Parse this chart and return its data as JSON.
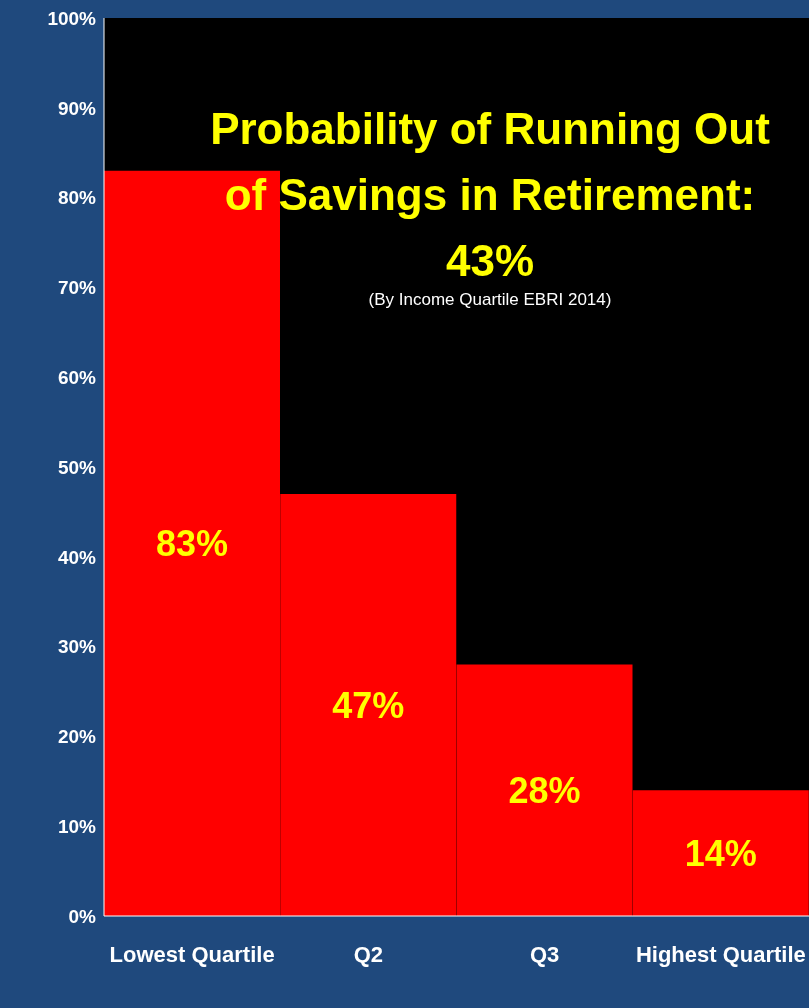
{
  "chart_data": {
    "type": "bar",
    "title": "Probability of Running Out of Savings in Retirement: 43%",
    "subtitle": "(By Income Quartile EBRI 2014)",
    "categories": [
      "Lowest Quartile",
      "Q2",
      "Q3",
      "Highest Quartile"
    ],
    "values": [
      83,
      47,
      28,
      14
    ],
    "value_labels": [
      "83%",
      "47%",
      "28%",
      "14%"
    ],
    "color": "#ff0000",
    "ylim": [
      0,
      100
    ],
    "yticks": [
      {
        "value": 0,
        "label": "0%"
      },
      {
        "value": 10,
        "label": "10%"
      },
      {
        "value": 20,
        "label": "20%"
      },
      {
        "value": 30,
        "label": "30%"
      },
      {
        "value": 40,
        "label": "40%"
      },
      {
        "value": 50,
        "label": "50%"
      },
      {
        "value": 60,
        "label": "60%"
      },
      {
        "value": 70,
        "label": "70%"
      },
      {
        "value": 80,
        "label": "80%"
      },
      {
        "value": 90,
        "label": "90%"
      },
      {
        "value": 100,
        "label": "100%"
      }
    ],
    "grid": false,
    "legend": false
  }
}
